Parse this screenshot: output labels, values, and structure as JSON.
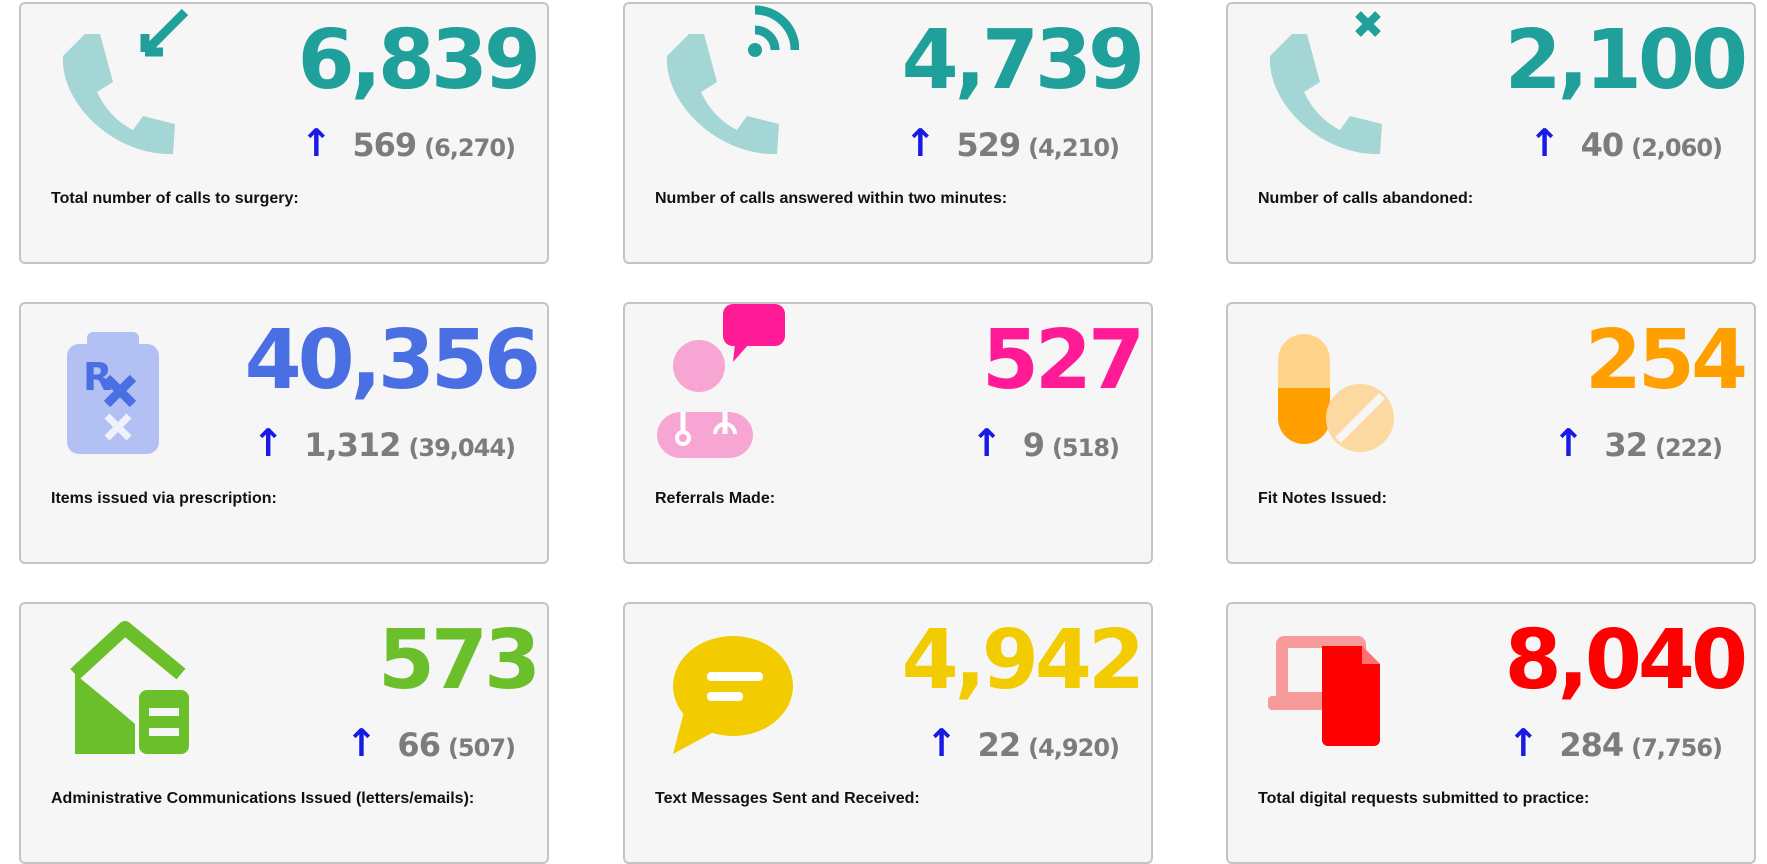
{
  "colors": {
    "teal": "#20a09a",
    "blue": "#4a6fe3",
    "pink": "#ff1a96",
    "orange": "#ffa000",
    "green": "#6bbf2a",
    "yellow": "#f2cc00",
    "red": "#ff0000",
    "arrow": "#1a1ae6",
    "delta_text": "#7c7c7c"
  },
  "cards": [
    {
      "value": "6,839",
      "change": "569",
      "previous": "(6,270)",
      "label": "Total number of calls to surgery:",
      "icon": "incoming-call-icon",
      "color": "#20a09a"
    },
    {
      "value": "4,739",
      "change": "529",
      "previous": "(4,210)",
      "label": "Number of calls answered within two minutes:",
      "icon": "calling-phone-icon",
      "color": "#20a09a"
    },
    {
      "value": "2,100",
      "change": "40",
      "previous": "(2,060)",
      "label": "Number of calls abandoned:",
      "icon": "missed-call-icon",
      "color": "#20a09a"
    },
    {
      "value": "40,356",
      "change": "1,312",
      "previous": "(39,044)",
      "label": "Items issued via prescription:",
      "icon": "prescription-icon",
      "color": "#4a6fe3"
    },
    {
      "value": "527",
      "change": "9",
      "previous": "(518)",
      "label": "Referrals Made:",
      "icon": "doctor-chat-icon",
      "color": "#ff1a96"
    },
    {
      "value": "254",
      "change": "32",
      "previous": "(222)",
      "label": "Fit Notes Issued:",
      "icon": "pills-icon",
      "color": "#ffa000"
    },
    {
      "value": "573",
      "change": "66",
      "previous": "(507)",
      "label": "Administrative Communications Issued (letters/emails):",
      "icon": "mailbox-house-icon",
      "color": "#6bbf2a"
    },
    {
      "value": "4,942",
      "change": "22",
      "previous": "(4,920)",
      "label": "Text Messages Sent and Received:",
      "icon": "speech-bubble-icon",
      "color": "#f2cc00"
    },
    {
      "value": "8,040",
      "change": "284",
      "previous": "(7,756)",
      "label": "Total digital requests submitted to practice:",
      "icon": "digital-document-icon",
      "color": "#ff0000"
    }
  ]
}
